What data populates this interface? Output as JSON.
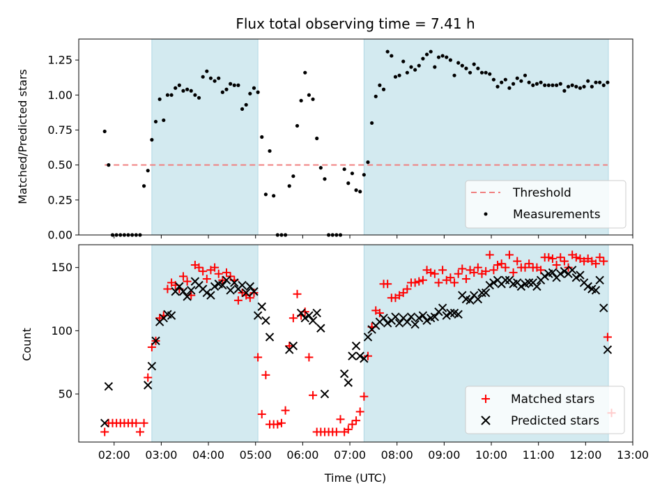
{
  "chart_data": [
    {
      "type": "scatter",
      "title": "Flux total observing time = 7.41 h",
      "xlabel": "",
      "ylabel": "Matched/Predicted stars",
      "xlim": [
        "01:15",
        "13:00"
      ],
      "ylim": [
        0,
        1.4
      ],
      "yticks": [
        0.0,
        0.25,
        0.5,
        0.75,
        1.0,
        1.25
      ],
      "ytick_labels": [
        "0.00",
        "0.25",
        "0.50",
        "0.75",
        "1.00",
        "1.25"
      ],
      "shaded_periods": [
        [
          "02:48",
          "05:03"
        ],
        [
          "07:18",
          "12:29"
        ]
      ],
      "shade_color": "#d3eaf0",
      "legend_position": "lower-right",
      "threshold": {
        "name": "Threshold",
        "value": 0.5,
        "color": "#f08080",
        "style": "dashed"
      },
      "series": [
        {
          "name": "Measurements",
          "color": "#000000",
          "marker": "dot",
          "x": [
            "01:48",
            "01:53",
            "01:58",
            "02:03",
            "02:08",
            "02:13",
            "02:18",
            "02:23",
            "02:28",
            "02:33",
            "02:38",
            "02:43",
            "02:48",
            "02:53",
            "02:58",
            "03:03",
            "03:08",
            "03:13",
            "03:18",
            "03:23",
            "03:28",
            "03:33",
            "03:38",
            "03:43",
            "03:48",
            "03:53",
            "03:58",
            "04:03",
            "04:08",
            "04:13",
            "04:18",
            "04:23",
            "04:28",
            "04:33",
            "04:38",
            "04:43",
            "04:48",
            "04:53",
            "04:58",
            "05:03",
            "05:08",
            "05:13",
            "05:18",
            "05:23",
            "05:28",
            "05:33",
            "05:38",
            "05:43",
            "05:48",
            "05:53",
            "05:58",
            "06:03",
            "06:08",
            "06:13",
            "06:18",
            "06:23",
            "06:28",
            "06:33",
            "06:38",
            "06:43",
            "06:48",
            "06:53",
            "06:58",
            "07:03",
            "07:08",
            "07:13",
            "07:18",
            "07:23",
            "07:28",
            "07:33",
            "07:38",
            "07:43",
            "07:48",
            "07:53",
            "07:58",
            "08:03",
            "08:08",
            "08:13",
            "08:18",
            "08:23",
            "08:28",
            "08:33",
            "08:38",
            "08:43",
            "08:48",
            "08:53",
            "08:58",
            "09:03",
            "09:08",
            "09:13",
            "09:18",
            "09:23",
            "09:28",
            "09:33",
            "09:38",
            "09:43",
            "09:48",
            "09:53",
            "09:58",
            "10:03",
            "10:08",
            "10:13",
            "10:18",
            "10:23",
            "10:28",
            "10:33",
            "10:38",
            "10:43",
            "10:48",
            "10:53",
            "10:58",
            "11:03",
            "11:08",
            "11:13",
            "11:18",
            "11:23",
            "11:28",
            "11:33",
            "11:38",
            "11:43",
            "11:48",
            "11:53",
            "11:58",
            "12:03",
            "12:08",
            "12:13",
            "12:18",
            "12:23",
            "12:28"
          ],
          "values": [
            0.74,
            0.5,
            0,
            0,
            0,
            0,
            0,
            0,
            0,
            0,
            0.35,
            0.46,
            0.68,
            0.81,
            0.97,
            0.82,
            1.0,
            1.0,
            1.05,
            1.07,
            1.03,
            1.04,
            1.03,
            1.0,
            0.98,
            1.13,
            1.17,
            1.12,
            1.1,
            1.12,
            1.02,
            1.04,
            1.08,
            1.07,
            1.07,
            0.9,
            0.93,
            1.01,
            1.05,
            1.02,
            0.7,
            0.29,
            0.6,
            0.28,
            0,
            0,
            0,
            0.35,
            0.42,
            0.78,
            0.96,
            1.16,
            1.0,
            0.97,
            0.69,
            0.48,
            0.4,
            0,
            0,
            0,
            0,
            0.47,
            0.37,
            0.44,
            0.32,
            0.31,
            0.43,
            0.52,
            0.8,
            0.99,
            1.07,
            1.04,
            1.31,
            1.28,
            1.13,
            1.14,
            1.24,
            1.16,
            1.2,
            1.18,
            1.21,
            1.26,
            1.29,
            1.31,
            1.2,
            1.27,
            1.28,
            1.27,
            1.25,
            1.14,
            1.23,
            1.21,
            1.19,
            1.16,
            1.22,
            1.19,
            1.16,
            1.16,
            1.15,
            1.11,
            1.06,
            1.09,
            1.11,
            1.05,
            1.08,
            1.12,
            1.1,
            1.14,
            1.09,
            1.07,
            1.08,
            1.09,
            1.07,
            1.07,
            1.07,
            1.07,
            1.08,
            1.03,
            1.06,
            1.07,
            1.06,
            1.05,
            1.06,
            1.1,
            1.06,
            1.09,
            1.09,
            1.07,
            1.09
          ]
        }
      ]
    },
    {
      "type": "scatter",
      "title": "",
      "xlabel": "Time (UTC)",
      "ylabel": "Count",
      "xlim": [
        "01:15",
        "13:00"
      ],
      "ylim": [
        12,
        168
      ],
      "yticks": [
        50,
        100,
        150
      ],
      "ytick_labels": [
        "50",
        "100",
        "150"
      ],
      "xticks": [
        "02:00",
        "03:00",
        "04:00",
        "05:00",
        "06:00",
        "07:00",
        "08:00",
        "09:00",
        "10:00",
        "11:00",
        "12:00",
        "13:00"
      ],
      "xtick_labels": [
        "02:00",
        "03:00",
        "04:00",
        "05:00",
        "06:00",
        "07:00",
        "08:00",
        "09:00",
        "10:00",
        "11:00",
        "12:00",
        "13:00"
      ],
      "shaded_periods": [
        [
          "02:48",
          "05:03"
        ],
        [
          "07:18",
          "12:29"
        ]
      ],
      "shade_color": "#d3eaf0",
      "legend_position": "lower-right",
      "series": [
        {
          "name": "Matched stars",
          "color": "#ff0000",
          "marker": "plus",
          "x": [
            "01:48",
            "01:53",
            "01:58",
            "02:03",
            "02:08",
            "02:13",
            "02:18",
            "02:23",
            "02:28",
            "02:33",
            "02:38",
            "02:43",
            "02:48",
            "02:53",
            "02:58",
            "03:03",
            "03:08",
            "03:13",
            "03:18",
            "03:23",
            "03:28",
            "03:33",
            "03:38",
            "03:43",
            "03:48",
            "03:53",
            "03:58",
            "04:03",
            "04:08",
            "04:13",
            "04:18",
            "04:23",
            "04:28",
            "04:33",
            "04:38",
            "04:43",
            "04:48",
            "04:53",
            "04:58",
            "05:03",
            "05:08",
            "05:13",
            "05:18",
            "05:23",
            "05:28",
            "05:33",
            "05:38",
            "05:43",
            "05:48",
            "05:53",
            "05:58",
            "06:03",
            "06:08",
            "06:13",
            "06:18",
            "06:23",
            "06:28",
            "06:33",
            "06:38",
            "06:43",
            "06:48",
            "06:53",
            "06:58",
            "07:03",
            "07:08",
            "07:13",
            "07:18",
            "07:23",
            "07:28",
            "07:33",
            "07:38",
            "07:43",
            "07:48",
            "07:53",
            "07:58",
            "08:03",
            "08:08",
            "08:13",
            "08:18",
            "08:23",
            "08:28",
            "08:33",
            "08:38",
            "08:43",
            "08:48",
            "08:53",
            "08:58",
            "09:03",
            "09:08",
            "09:13",
            "09:18",
            "09:23",
            "09:28",
            "09:33",
            "09:38",
            "09:43",
            "09:48",
            "09:53",
            "09:58",
            "10:03",
            "10:08",
            "10:13",
            "10:18",
            "10:23",
            "10:28",
            "10:33",
            "10:38",
            "10:43",
            "10:48",
            "10:53",
            "10:58",
            "11:03",
            "11:08",
            "11:13",
            "11:18",
            "11:23",
            "11:28",
            "11:33",
            "11:38",
            "11:43",
            "11:48",
            "11:53",
            "11:58",
            "12:03",
            "12:08",
            "12:13",
            "12:18",
            "12:23",
            "12:28",
            "12:33"
          ],
          "values": [
            20,
            27,
            27,
            27,
            27,
            27,
            27,
            27,
            27,
            20,
            27,
            63,
            87,
            92,
            110,
            112,
            133,
            138,
            136,
            133,
            143,
            139,
            128,
            152,
            150,
            147,
            141,
            148,
            150,
            145,
            140,
            146,
            143,
            140,
            124,
            130,
            128,
            126,
            130,
            79,
            34,
            65,
            26,
            26,
            26,
            27,
            37,
            88,
            110,
            129,
            112,
            115,
            79,
            49,
            20,
            20,
            20,
            20,
            20,
            20,
            30,
            20,
            22,
            26,
            29,
            36,
            48,
            80,
            103,
            116,
            114,
            137,
            137,
            126,
            126,
            128,
            130,
            133,
            138,
            138,
            139,
            140,
            148,
            146,
            145,
            138,
            148,
            140,
            142,
            138,
            145,
            149,
            141,
            148,
            146,
            150,
            145,
            147,
            160,
            148,
            152,
            153,
            150,
            160,
            146,
            155,
            150,
            150,
            153,
            150,
            150,
            148,
            158,
            158,
            157,
            152,
            158,
            155,
            150,
            160,
            158,
            157,
            155,
            157,
            155,
            153,
            158,
            155,
            95,
            35
          ]
        },
        {
          "name": "Predicted stars",
          "color": "#000000",
          "marker": "x",
          "x": [
            "01:48",
            "01:53",
            "02:43",
            "02:48",
            "02:53",
            "02:58",
            "03:03",
            "03:08",
            "03:13",
            "03:18",
            "03:23",
            "03:28",
            "03:33",
            "03:38",
            "03:43",
            "03:48",
            "03:53",
            "03:58",
            "04:03",
            "04:08",
            "04:13",
            "04:18",
            "04:23",
            "04:28",
            "04:33",
            "04:38",
            "04:43",
            "04:48",
            "04:53",
            "04:58",
            "05:03",
            "05:08",
            "05:13",
            "05:18",
            "05:43",
            "05:48",
            "05:58",
            "06:03",
            "06:08",
            "06:13",
            "06:18",
            "06:23",
            "06:28",
            "06:53",
            "06:58",
            "07:03",
            "07:08",
            "07:13",
            "07:18",
            "07:23",
            "07:28",
            "07:33",
            "07:38",
            "07:43",
            "07:48",
            "07:53",
            "07:58",
            "08:03",
            "08:08",
            "08:13",
            "08:18",
            "08:23",
            "08:28",
            "08:33",
            "08:38",
            "08:43",
            "08:48",
            "08:53",
            "08:58",
            "09:03",
            "09:08",
            "09:13",
            "09:18",
            "09:23",
            "09:28",
            "09:33",
            "09:38",
            "09:43",
            "09:48",
            "09:53",
            "09:58",
            "10:03",
            "10:08",
            "10:13",
            "10:18",
            "10:23",
            "10:28",
            "10:33",
            "10:38",
            "10:43",
            "10:48",
            "10:53",
            "10:58",
            "11:03",
            "11:08",
            "11:13",
            "11:18",
            "11:23",
            "11:28",
            "11:33",
            "11:38",
            "11:43",
            "11:48",
            "11:53",
            "11:58",
            "12:03",
            "12:08",
            "12:13",
            "12:18",
            "12:23",
            "12:28"
          ],
          "values": [
            27,
            56,
            57,
            72,
            92,
            107,
            110,
            113,
            112,
            131,
            135,
            131,
            127,
            132,
            139,
            136,
            133,
            130,
            128,
            135,
            137,
            136,
            140,
            132,
            138,
            133,
            136,
            130,
            135,
            131,
            112,
            119,
            108,
            95,
            85,
            88,
            114,
            110,
            112,
            108,
            114,
            102,
            50,
            66,
            59,
            80,
            88,
            80,
            78,
            95,
            101,
            104,
            107,
            110,
            106,
            108,
            111,
            106,
            110,
            107,
            111,
            105,
            110,
            112,
            108,
            110,
            111,
            115,
            118,
            112,
            114,
            114,
            113,
            128,
            125,
            124,
            128,
            125,
            130,
            130,
            136,
            138,
            140,
            137,
            140,
            140,
            137,
            138,
            135,
            137,
            138,
            138,
            135,
            140,
            143,
            145,
            146,
            142,
            145,
            147,
            145,
            148,
            142,
            144,
            138,
            135,
            133,
            132,
            140,
            118,
            85
          ]
        }
      ]
    }
  ]
}
